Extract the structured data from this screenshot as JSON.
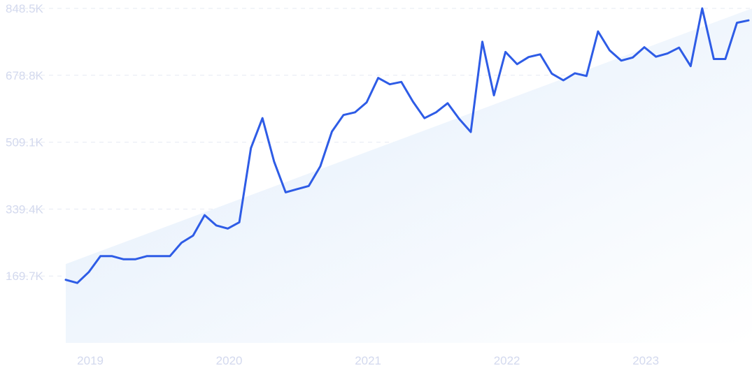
{
  "chart_data": {
    "type": "line",
    "title": "",
    "xlabel": "",
    "ylabel": "",
    "y_ticks": [
      "169.7K",
      "339.4K",
      "509.1K",
      "678.8K",
      "848.5K"
    ],
    "y_tick_values": [
      169700,
      339400,
      509100,
      678800,
      848500
    ],
    "ylim": [
      0,
      848500
    ],
    "x_ticks": [
      "2019",
      "2020",
      "2021",
      "2022",
      "2023"
    ],
    "xlim": [
      "2018-11",
      "2023-10"
    ],
    "grid": "horizontal dashed",
    "trend": {
      "start": 200000,
      "end": 848500
    },
    "colors": {
      "line": "#2e5ce6",
      "trend_fill_start": "#e1edfb",
      "trend_fill_end": "#ffffff",
      "grid": "#e6e9f2",
      "tick_text": "#d3d9ee"
    },
    "series": [
      {
        "x": [
          "2018-11",
          "2018-12",
          "2019-01",
          "2019-02",
          "2019-03",
          "2019-04",
          "2019-05",
          "2019-06",
          "2019-07",
          "2019-08",
          "2019-09",
          "2019-10",
          "2019-11",
          "2019-12",
          "2020-01",
          "2020-02",
          "2020-03",
          "2020-04",
          "2020-05",
          "2020-06",
          "2020-07",
          "2020-08",
          "2020-09",
          "2020-10",
          "2020-11",
          "2020-12",
          "2021-01",
          "2021-02",
          "2021-03",
          "2021-04",
          "2021-05",
          "2021-06",
          "2021-07",
          "2021-08",
          "2021-09",
          "2021-10",
          "2021-11",
          "2021-12",
          "2022-01",
          "2022-02",
          "2022-03",
          "2022-04",
          "2022-05",
          "2022-06",
          "2022-07",
          "2022-08",
          "2022-09",
          "2022-10",
          "2022-11",
          "2022-12",
          "2023-01",
          "2023-02",
          "2023-03",
          "2023-04",
          "2023-05",
          "2023-06",
          "2023-07",
          "2023-08",
          "2023-09",
          "2023-10"
        ],
        "values": [
          160000,
          152000,
          180000,
          220000,
          220000,
          212000,
          212000,
          220000,
          220000,
          220000,
          254000,
          272000,
          324000,
          298000,
          290000,
          306000,
          494000,
          570000,
          460000,
          382000,
          390000,
          398000,
          448000,
          536000,
          578000,
          585000,
          610000,
          672000,
          656000,
          662000,
          612000,
          570000,
          585000,
          608000,
          568000,
          535000,
          764000,
          628000,
          738000,
          707000,
          725000,
          732000,
          683000,
          666000,
          684000,
          677000,
          790000,
          742000,
          716000,
          724000,
          750000,
          726000,
          734000,
          749000,
          702000,
          848500,
          720000,
          720000,
          812000,
          818000
        ]
      }
    ]
  }
}
